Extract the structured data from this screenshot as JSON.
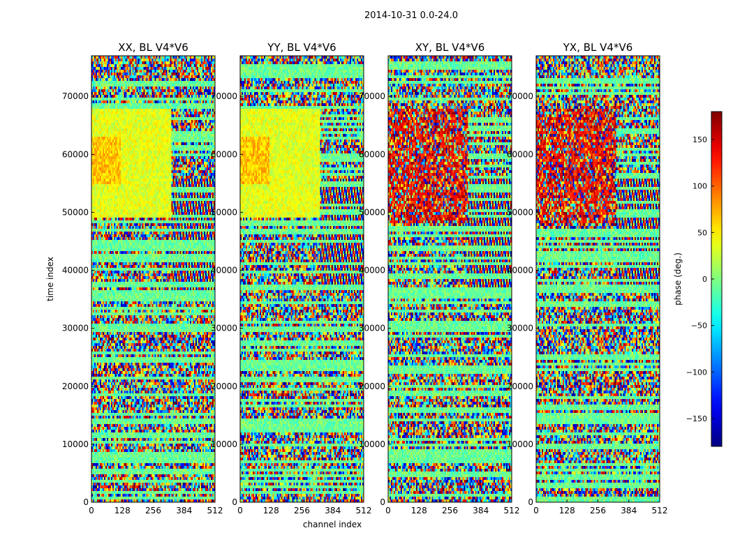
{
  "figure": {
    "suptitle": "2014-10-31 0.0-24.0",
    "xlabel": "channel index",
    "ylabel": "time index"
  },
  "chart_data": [
    {
      "type": "heatmap",
      "title": "XX, BL V4*V6",
      "xlim": [
        0,
        512
      ],
      "ylim": [
        0,
        77000
      ],
      "xticks": [
        0,
        128,
        256,
        384,
        512
      ],
      "yticks": [
        0,
        10000,
        20000,
        30000,
        40000,
        50000,
        60000,
        70000
      ],
      "value_range": [
        -180,
        180
      ],
      "description_of_values": "phase (deg.) per channel and time index"
    },
    {
      "type": "heatmap",
      "title": "YY, BL V4*V6",
      "xlim": [
        0,
        512
      ],
      "ylim": [
        0,
        77000
      ],
      "xticks": [
        0,
        128,
        256,
        384,
        512
      ],
      "yticks": [
        0,
        10000,
        20000,
        30000,
        40000,
        50000,
        60000,
        70000
      ],
      "value_range": [
        -180,
        180
      ]
    },
    {
      "type": "heatmap",
      "title": "XY, BL V4*V6",
      "xlim": [
        0,
        512
      ],
      "ylim": [
        0,
        77000
      ],
      "xticks": [
        0,
        128,
        256,
        384,
        512
      ],
      "yticks": [
        0,
        10000,
        20000,
        30000,
        40000,
        50000,
        60000,
        70000
      ],
      "value_range": [
        -180,
        180
      ]
    },
    {
      "type": "heatmap",
      "title": "YX, BL V4*V6",
      "xlim": [
        0,
        512
      ],
      "ylim": [
        0,
        77000
      ],
      "xticks": [
        0,
        128,
        256,
        384,
        512
      ],
      "yticks": [
        0,
        10000,
        20000,
        30000,
        40000,
        50000,
        60000,
        70000
      ],
      "value_range": [
        -180,
        180
      ]
    }
  ],
  "colorbar": {
    "label": "phase (deg.)",
    "min": -180,
    "max": 180,
    "ticks": [
      150,
      100,
      50,
      0,
      -50,
      -100,
      -150
    ],
    "tick_labels": [
      "150",
      "100",
      "50",
      "0",
      "−50",
      "−100",
      "−150"
    ],
    "colormap": "jet"
  }
}
